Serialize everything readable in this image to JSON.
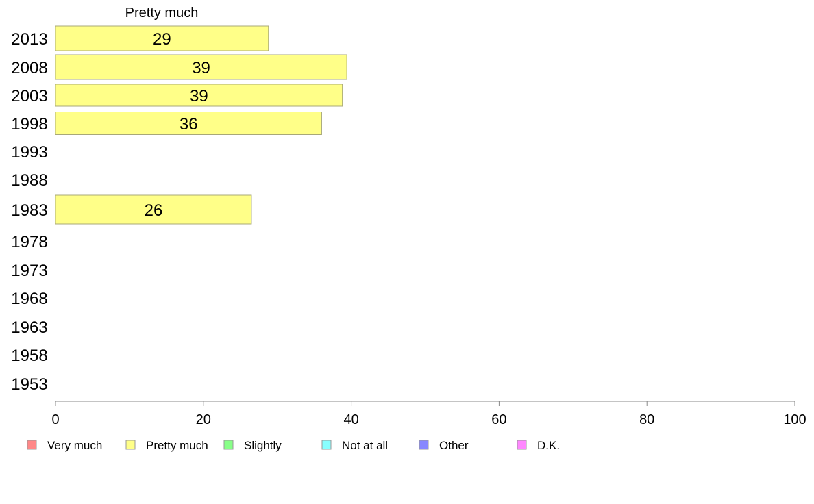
{
  "chart_data": {
    "type": "bar",
    "orientation": "horizontal",
    "column_title": "Pretty much",
    "categories": [
      "2013",
      "2008",
      "2003",
      "1998",
      "1993",
      "1988",
      "1983",
      "1978",
      "1973",
      "1968",
      "1963",
      "1958",
      "1953"
    ],
    "series": [
      {
        "name": "Pretty much",
        "color": "#ffff88",
        "values": [
          28.8,
          39.4,
          38.8,
          36.0,
          null,
          null,
          26.5,
          null,
          null,
          null,
          null,
          null,
          null
        ],
        "labels": [
          "29",
          "39",
          "39",
          "36",
          "",
          "",
          "26",
          "",
          "",
          "",
          "",
          "",
          ""
        ]
      }
    ],
    "xlim": [
      0,
      100
    ],
    "xticks": [
      0,
      20,
      40,
      60,
      80,
      100
    ],
    "grid": false,
    "legend_position": "bottom",
    "legend": [
      {
        "label": "Very much",
        "color": "#ff8888"
      },
      {
        "label": "Pretty much",
        "color": "#ffff88"
      },
      {
        "label": "Slightly",
        "color": "#88ff88"
      },
      {
        "label": "Not at all",
        "color": "#88ffff"
      },
      {
        "label": "Other",
        "color": "#8888ff"
      },
      {
        "label": "D.K.",
        "color": "#ff88ff"
      }
    ]
  }
}
